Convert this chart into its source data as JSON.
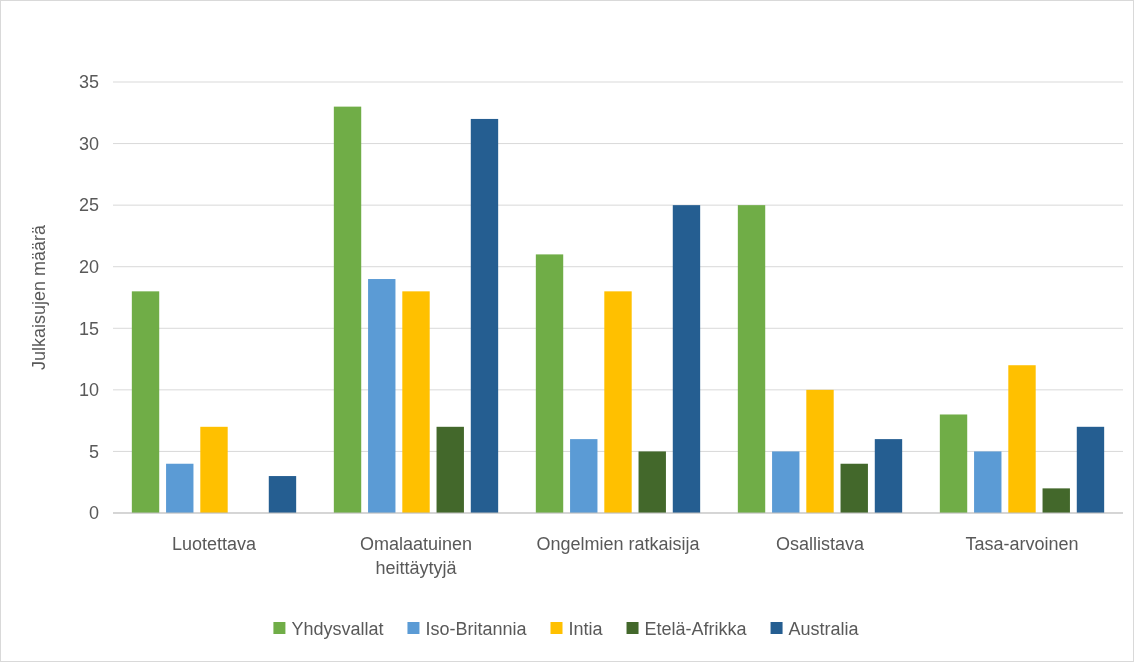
{
  "chart_data": {
    "type": "bar",
    "ylabel": "Julkaisujen määrä",
    "categories": [
      "Luotettava",
      "Omalaatuinen heittäytyjä",
      "Ongelmien ratkaisija",
      "Osallistava",
      "Tasa-arvoinen"
    ],
    "series": [
      {
        "name": "Yhdysvallat",
        "color": "#70ad47",
        "values": [
          18,
          33,
          21,
          25,
          8
        ]
      },
      {
        "name": "Iso-Britannia",
        "color": "#5b9bd5",
        "values": [
          4,
          19,
          6,
          5,
          5
        ]
      },
      {
        "name": "Intia",
        "color": "#ffc000",
        "values": [
          7,
          18,
          18,
          10,
          12
        ]
      },
      {
        "name": "Etelä-Afrikka",
        "color": "#43682b",
        "values": [
          0,
          7,
          5,
          4,
          2
        ]
      },
      {
        "name": "Australia",
        "color": "#255e91",
        "values": [
          3,
          32,
          25,
          6,
          7
        ]
      }
    ],
    "ylim": [
      0,
      35
    ],
    "yticks": [
      0,
      5,
      10,
      15,
      20,
      25,
      30,
      35
    ],
    "grid": "y",
    "legend": "bottom"
  }
}
